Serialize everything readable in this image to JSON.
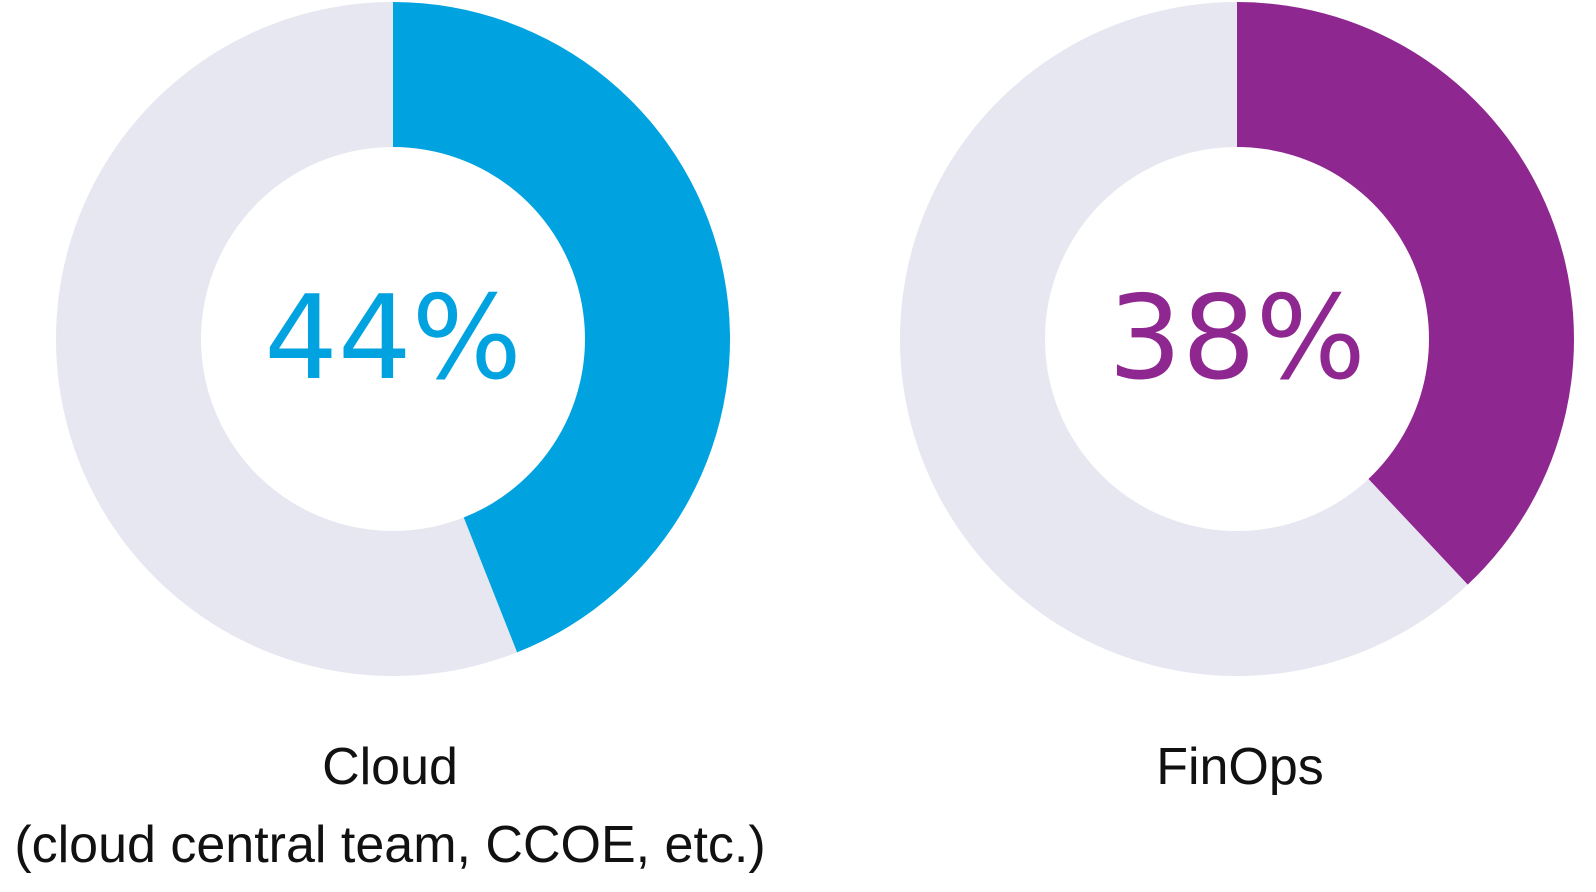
{
  "chart_data": [
    {
      "type": "pie",
      "variant": "donut",
      "label_line1": "Cloud",
      "label_line2": "(cloud central team, CCOE, etc.)",
      "value_label": "44%",
      "values": [
        44,
        56
      ],
      "colors": [
        "#00A3E0",
        "#E6E7F0"
      ]
    },
    {
      "type": "pie",
      "variant": "donut",
      "label_line1": "FinOps",
      "value_label": "38%",
      "values": [
        38,
        62
      ],
      "colors": [
        "#8E278F",
        "#E6E7F0"
      ]
    }
  ]
}
